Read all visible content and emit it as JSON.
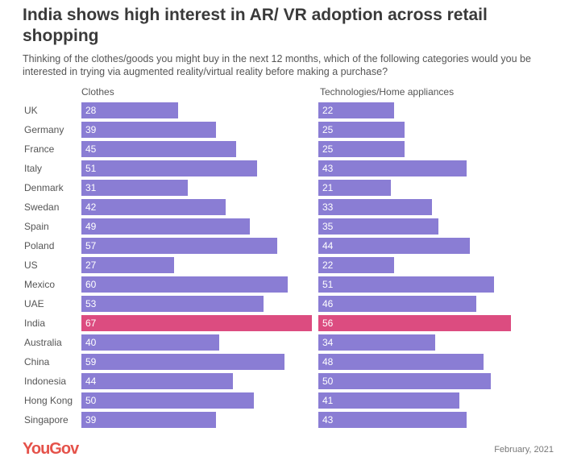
{
  "title": "India shows high interest in AR/ VR adoption across retail shopping",
  "subtitle": "Thinking of the clothes/goods you might buy in the next 12 months, which of the following categories would you be interested in trying via augmented reality/virtual reality before making a purchase?",
  "footer": {
    "logo": "YouGov",
    "date": "February, 2021"
  },
  "colors": {
    "default": "#8a7dd4",
    "highlight": "#dc4c80"
  },
  "chart_data": {
    "type": "bar",
    "orientation": "horizontal",
    "highlight": "India",
    "categories": [
      "UK",
      "Germany",
      "France",
      "Italy",
      "Denmark",
      "Swedan",
      "Spain",
      "Poland",
      "US",
      "Mexico",
      "UAE",
      "India",
      "Australia",
      "China",
      "Indonesia",
      "Hong Kong",
      "Singapore"
    ],
    "series": [
      {
        "name": "Clothes",
        "values": [
          28,
          39,
          45,
          51,
          31,
          42,
          49,
          57,
          27,
          60,
          53,
          67,
          40,
          59,
          44,
          50,
          39
        ]
      },
      {
        "name": "Technologies/Home appliances",
        "values": [
          22,
          25,
          25,
          43,
          21,
          33,
          35,
          44,
          22,
          51,
          46,
          56,
          34,
          48,
          50,
          41,
          43
        ]
      }
    ],
    "grid": false
  }
}
